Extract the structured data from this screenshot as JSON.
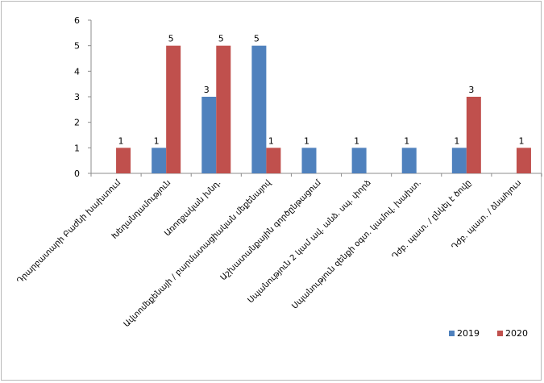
{
  "chart_data": {
    "type": "bar",
    "categories": [
      "Դրարբատարի Բաժնի խախտում",
      "Խեղանդամություն",
      "Առողջական խնդ.",
      "Ավտոմեքենայի / բարմատացիական մեքենայով",
      "Աշխատանքային գործընթացում",
      "Սպանություն 2 կամ ավ. անձ. սպ. փորձ",
      "Սպանություն զենքի օգտ. կամով. խախտ.",
      "Դժբ. պատ. / ընկել է ծովը",
      "Դժբ. պատ. / ձնահյուս"
    ],
    "series": [
      {
        "name": "2019",
        "color": "#4f81bd",
        "values": [
          0,
          1,
          3,
          5,
          1,
          1,
          1,
          1,
          0
        ]
      },
      {
        "name": "2020",
        "color": "#c0504d",
        "values": [
          1,
          5,
          5,
          1,
          0,
          0,
          0,
          3,
          1
        ]
      }
    ],
    "ylim": [
      0,
      6
    ],
    "yticks": [
      "0",
      "1",
      "2",
      "3",
      "4",
      "5",
      "6"
    ],
    "grid": false,
    "legend": "bottom-right"
  }
}
